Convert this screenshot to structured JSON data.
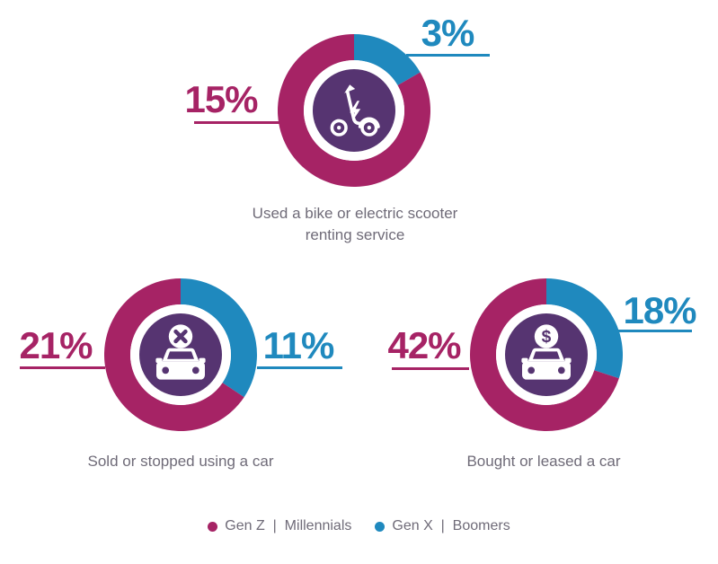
{
  "colors": {
    "magenta": "#A62365",
    "blue": "#1F89BE",
    "purple": "#563471",
    "gray": "#6F6B78"
  },
  "icons": {
    "dollar_glyph": "$"
  },
  "legend": {
    "items": [
      {
        "label": "Gen Z  |  Millennials",
        "color": "#A62365"
      },
      {
        "label": "Gen X  |  Boomers",
        "color": "#1F89BE"
      }
    ]
  },
  "chart_data": [
    {
      "type": "pie",
      "variant": "donut",
      "icon": "electric-scooter-icon",
      "caption": "Used a bike or electric scooter renting service",
      "caption_lines": [
        "Used a bike or electric scooter",
        "renting service"
      ],
      "legend_position": "bottom",
      "segments": [
        {
          "name": "Gen Z | Millennials",
          "label": "15%",
          "value": 15,
          "color": "#A62365",
          "label_side": "left"
        },
        {
          "name": "Gen X | Boomers",
          "label": "3%",
          "value": 3,
          "color": "#1F89BE",
          "label_side": "right"
        }
      ]
    },
    {
      "type": "pie",
      "variant": "donut",
      "icon": "car-sold-x-icon",
      "caption": "Sold or stopped using a car",
      "caption_lines": [
        "Sold or stopped using a car"
      ],
      "legend_position": "bottom",
      "segments": [
        {
          "name": "Gen Z | Millennials",
          "label": "21%",
          "value": 21,
          "color": "#A62365",
          "label_side": "left"
        },
        {
          "name": "Gen X | Boomers",
          "label": "11%",
          "value": 11,
          "color": "#1F89BE",
          "label_side": "right"
        }
      ]
    },
    {
      "type": "pie",
      "variant": "donut",
      "icon": "car-purchase-dollar-icon",
      "caption": "Bought or leased a car",
      "caption_lines": [
        "Bought or leased a car"
      ],
      "legend_position": "bottom",
      "segments": [
        {
          "name": "Gen Z | Millennials",
          "label": "42%",
          "value": 42,
          "color": "#A62365",
          "label_side": "left"
        },
        {
          "name": "Gen X | Boomers",
          "label": "18%",
          "value": 18,
          "color": "#1F89BE",
          "label_side": "right"
        }
      ]
    }
  ]
}
